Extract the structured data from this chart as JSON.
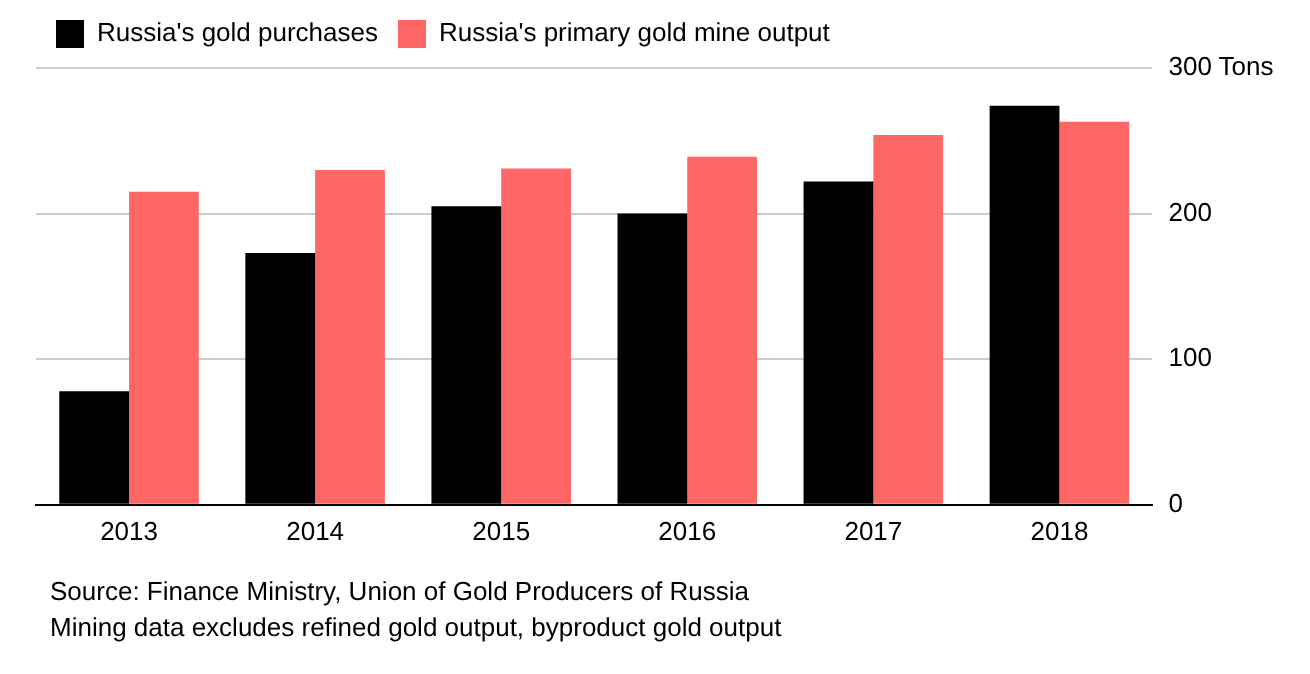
{
  "chart_data": {
    "type": "bar",
    "categories": [
      "2013",
      "2014",
      "2015",
      "2016",
      "2017",
      "2018"
    ],
    "series": [
      {
        "name": "Russia's gold purchases",
        "color": "#000000",
        "values": [
          78,
          173,
          205,
          200,
          222,
          274
        ]
      },
      {
        "name": "Russia's primary gold mine output",
        "color": "#ff6666",
        "values": [
          215,
          230,
          231,
          239,
          254,
          263
        ]
      }
    ],
    "ylim": [
      0,
      300
    ],
    "yticks": [
      0,
      100,
      200,
      {
        "value": 300,
        "label": "300 Tons"
      }
    ],
    "grid": "y",
    "legend": "top left",
    "annotations": [
      "Source: Finance Ministry, Union of Gold Producers of Russia",
      "Mining data excludes refined gold output, byproduct gold output"
    ]
  }
}
